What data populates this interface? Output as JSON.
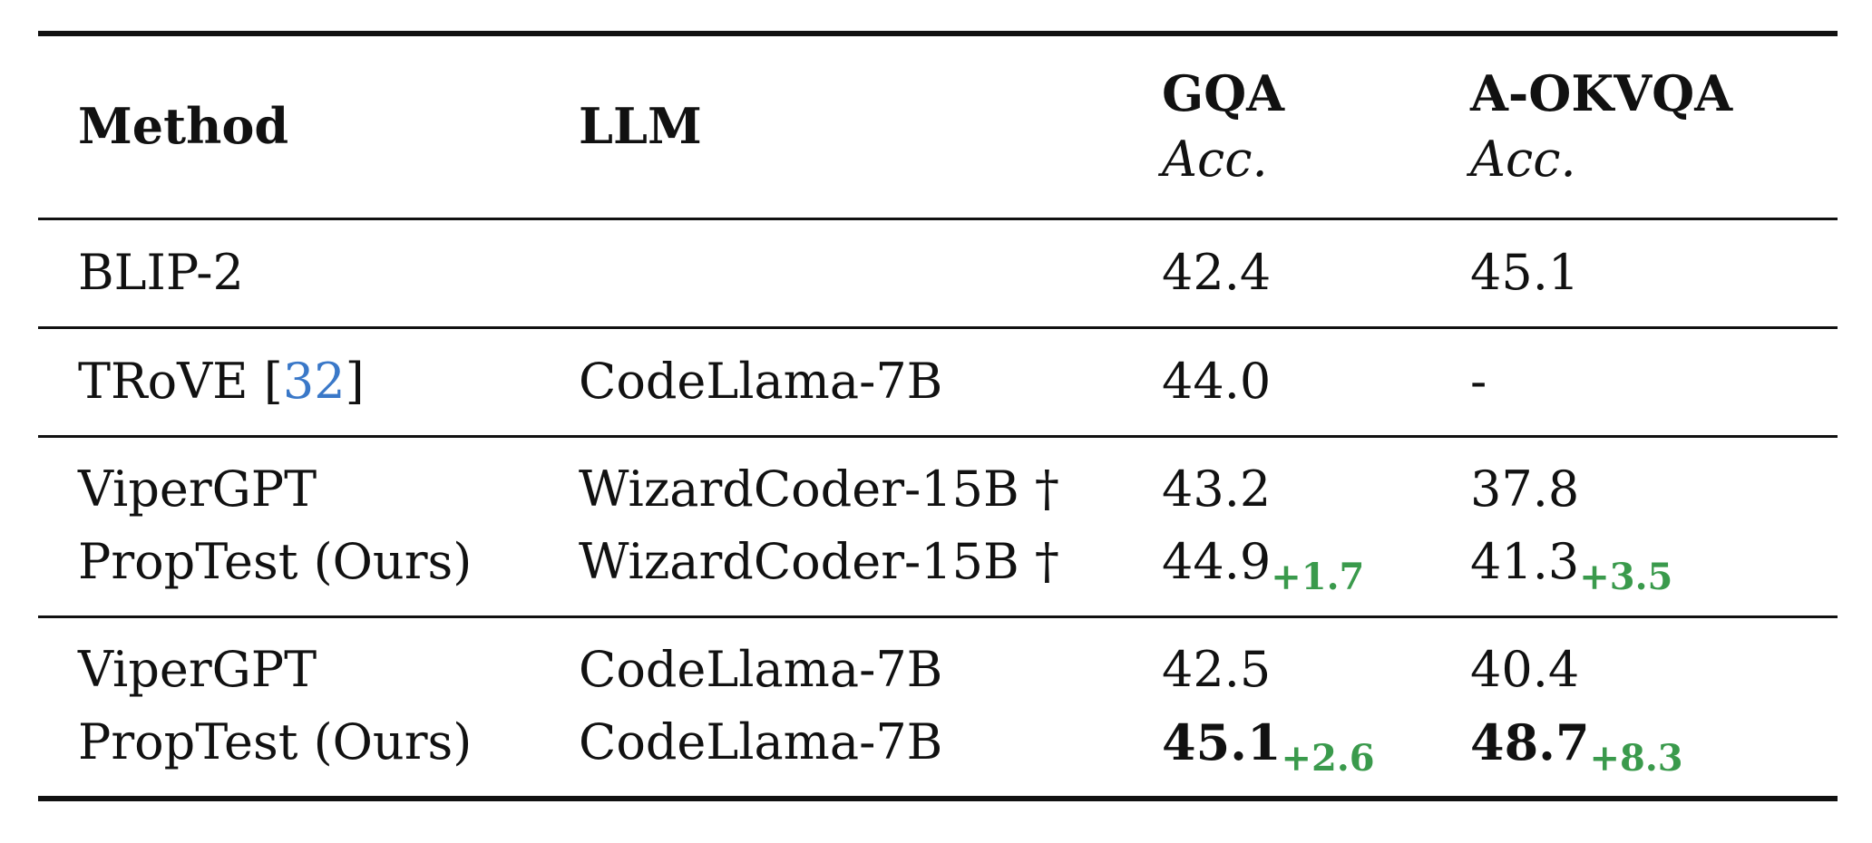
{
  "header": {
    "method": "Method",
    "llm": "LLM",
    "gqa": "GQA",
    "gqa_metric": "Acc.",
    "aokvqa": "A-OKVQA",
    "aokvqa_metric": "Acc."
  },
  "rows": [
    {
      "method": "BLIP-2",
      "llm": "",
      "gqa": "42.4",
      "aokvqa": "45.1"
    },
    {
      "method": "TRoVE [",
      "cite": "32",
      "method_end": "]",
      "llm": "CodeLlama-7B",
      "gqa": "44.0",
      "aokvqa": "-"
    },
    {
      "method": "ViperGPT",
      "llm": "WizardCoder-15B †",
      "gqa": "43.2",
      "aokvqa": "37.8"
    },
    {
      "method": "PropTest (Ours)",
      "llm": "WizardCoder-15B †",
      "gqa": "44.9",
      "gqa_delta": "+1.7",
      "aokvqa": "41.3",
      "aokvqa_delta": "+3.5"
    },
    {
      "method": "ViperGPT",
      "llm": "CodeLlama-7B",
      "gqa": "42.5",
      "aokvqa": "40.4"
    },
    {
      "method": "PropTest (Ours)",
      "llm": "CodeLlama-7B",
      "gqa": "45.1",
      "gqa_delta": "+2.6",
      "aokvqa": "48.7",
      "aokvqa_delta": "+8.3"
    }
  ],
  "colors": {
    "citation": "#3a78c8",
    "delta": "#3a9a4c"
  }
}
